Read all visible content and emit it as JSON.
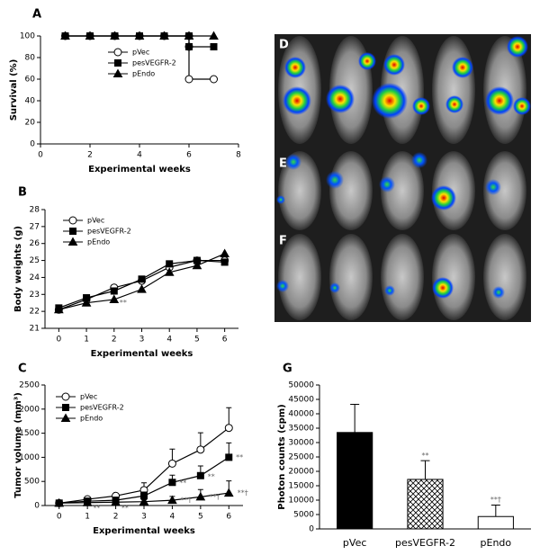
{
  "chart_data": [
    {
      "type": "line",
      "panel": "A",
      "xlabel": "Experimental weeks",
      "ylabel": "Survival (%)",
      "xlim": [
        0,
        8
      ],
      "xticks": [
        0,
        2,
        4,
        6,
        8
      ],
      "ylim": [
        0,
        100
      ],
      "yticks": [
        0,
        20,
        40,
        60,
        80,
        100
      ],
      "legend": "upper-center",
      "series": [
        {
          "name": "pVec",
          "color": "#000000",
          "marker": "circle-open",
          "x": [
            1,
            2,
            3,
            4,
            5,
            6,
            6,
            6,
            7
          ],
          "values": [
            100,
            100,
            100,
            100,
            100,
            100,
            90,
            60,
            60
          ]
        },
        {
          "name": "pesVEGFR-2",
          "color": "#000000",
          "marker": "square",
          "x": [
            1,
            2,
            3,
            4,
            5,
            6,
            6,
            7
          ],
          "values": [
            100,
            100,
            100,
            100,
            100,
            100,
            90,
            90
          ]
        },
        {
          "name": "pEndo",
          "color": "#000000",
          "marker": "triangle",
          "x": [
            1,
            2,
            3,
            4,
            5,
            6,
            7
          ],
          "values": [
            100,
            100,
            100,
            100,
            100,
            100,
            100
          ]
        }
      ]
    },
    {
      "type": "line",
      "panel": "B",
      "xlabel": "Experimental weeks",
      "ylabel": "Body weights (g)",
      "xlim": [
        -0.5,
        6.5
      ],
      "xticks": [
        0,
        1,
        2,
        3,
        4,
        5,
        6
      ],
      "ylim": [
        21,
        28
      ],
      "yticks": [
        21,
        22,
        23,
        24,
        25,
        26,
        27,
        28
      ],
      "legend": "upper-left",
      "series": [
        {
          "name": "pVec",
          "color": "#000000",
          "marker": "circle-open",
          "x": [
            0,
            1,
            2,
            3,
            4,
            5,
            6
          ],
          "values": [
            22.1,
            22.7,
            23.4,
            23.8,
            24.6,
            25.0,
            25.0
          ]
        },
        {
          "name": "pesVEGFR-2",
          "color": "#000000",
          "marker": "square",
          "x": [
            0,
            1,
            2,
            3,
            4,
            5,
            6
          ],
          "values": [
            22.2,
            22.8,
            23.2,
            23.9,
            24.8,
            25.0,
            24.9
          ]
        },
        {
          "name": "pEndo",
          "color": "#000000",
          "marker": "triangle",
          "x": [
            0,
            1,
            2,
            3,
            4,
            5,
            6
          ],
          "values": [
            22.1,
            22.5,
            22.7,
            23.3,
            24.3,
            24.7,
            25.4
          ]
        }
      ],
      "annotations": [
        {
          "text": "**",
          "x": 2.2,
          "y": 22.5
        }
      ]
    },
    {
      "type": "line",
      "panel": "C",
      "xlabel": "Experimental weeks",
      "ylabel": "Tumor volume (mm³)",
      "xlim": [
        -0.5,
        6.5
      ],
      "xticks": [
        0,
        1,
        2,
        3,
        4,
        5,
        6
      ],
      "ylim": [
        0,
        2500
      ],
      "yticks": [
        0,
        500,
        1000,
        1500,
        2000,
        2500
      ],
      "legend": "upper-left",
      "series": [
        {
          "name": "pVec",
          "color": "#000000",
          "marker": "circle-open",
          "x": [
            0,
            1,
            2,
            3,
            4,
            5,
            6
          ],
          "values": [
            50,
            130,
            200,
            320,
            870,
            1160,
            1610
          ],
          "errors": [
            20,
            40,
            50,
            150,
            300,
            350,
            420
          ]
        },
        {
          "name": "pesVEGFR-2",
          "color": "#000000",
          "marker": "square",
          "x": [
            0,
            1,
            2,
            3,
            4,
            5,
            6
          ],
          "values": [
            50,
            90,
            110,
            200,
            480,
            620,
            1000
          ],
          "errors": [
            20,
            30,
            40,
            80,
            150,
            200,
            300
          ]
        },
        {
          "name": "pEndo",
          "color": "#000000",
          "marker": "triangle",
          "x": [
            0,
            1,
            2,
            3,
            4,
            5,
            6
          ],
          "values": [
            50,
            60,
            70,
            80,
            110,
            180,
            260
          ],
          "errors": [
            10,
            20,
            30,
            40,
            80,
            150,
            250
          ]
        }
      ],
      "annotations": [
        {
          "text": "**",
          "x": 6.25,
          "y": 1000
        },
        {
          "text": "**",
          "x": 5.25,
          "y": 600
        },
        {
          "text": "**",
          "x": 4.25,
          "y": 470
        },
        {
          "text": "**†",
          "x": 6.3,
          "y": 260
        },
        {
          "text": "**†",
          "x": 5.3,
          "y": 180
        },
        {
          "text": "**†",
          "x": 4.3,
          "y": 110
        },
        {
          "text": "**",
          "x": 1.2,
          "y": -60
        },
        {
          "text": "**",
          "x": 2.2,
          "y": -60
        }
      ]
    },
    {
      "type": "bar",
      "panel": "G",
      "ylabel": "Photon counts (cpm)",
      "categories": [
        "pVec",
        "pesVEGFR-2",
        "pEndo"
      ],
      "values": [
        33500,
        17200,
        4300
      ],
      "errors": [
        9800,
        6500,
        4000
      ],
      "colors": [
        "#000000",
        "#ffffff",
        "#ffffff"
      ],
      "hatch": [
        false,
        true,
        false
      ],
      "ylim": [
        0,
        50000
      ],
      "yticks": [
        0,
        5000,
        10000,
        15000,
        20000,
        25000,
        30000,
        35000,
        40000,
        45000,
        50000
      ],
      "annotations": [
        {
          "text": "**",
          "x": 1,
          "y": 25500
        },
        {
          "text": "**†",
          "x": 2,
          "y": 10200
        }
      ]
    }
  ],
  "image_panels": [
    "D",
    "E",
    "F"
  ]
}
